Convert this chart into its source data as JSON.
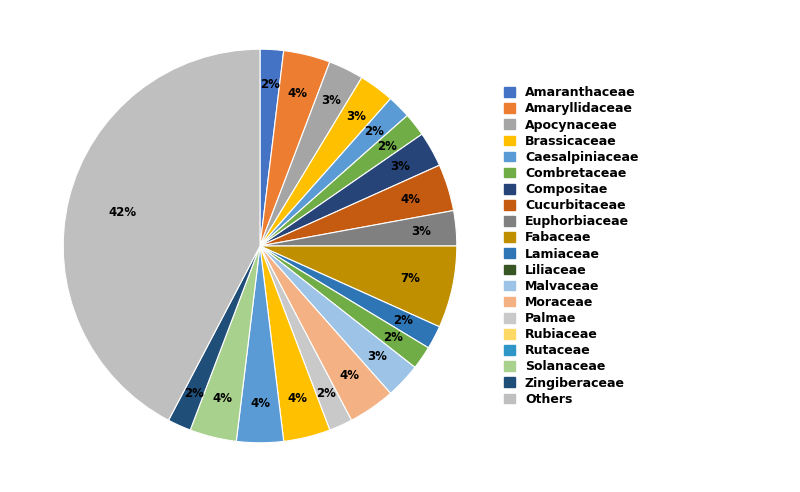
{
  "labels": [
    "Amaranthaceae",
    "Amaryllidaceae",
    "Apocynaceae",
    "Brassicaceae",
    "Caesalpiniaceae",
    "Combretaceae",
    "Compositae",
    "Cucurbitaceae",
    "Euphorbiaceae",
    "Fabaceae",
    "Lamiaceae",
    "Liliaceae",
    "Malvaceae",
    "Moraceae",
    "Palmae",
    "Rubiaceae",
    "Rutaceae",
    "Solanaceae",
    "Zingiberaceae",
    "Others"
  ],
  "values": [
    2,
    4,
    3,
    3,
    2,
    2,
    3,
    4,
    3,
    7,
    2,
    2,
    3,
    4,
    2,
    4,
    4,
    4,
    2,
    44
  ],
  "colors": [
    "#4472C4",
    "#ED7D31",
    "#A5A5A5",
    "#FFC000",
    "#5B9BD5",
    "#70AD47",
    "#264478",
    "#C55A11",
    "#808080",
    "#BF8F00",
    "#2E75B6",
    "#70AD47",
    "#9DC3E6",
    "#F4B183",
    "#C9C9C9",
    "#FFC000",
    "#5B9BD5",
    "#A9D18E",
    "#1F4E79",
    "#BFBFBF"
  ],
  "startangle": 90,
  "figsize": [
    8.0,
    4.92
  ],
  "dpi": 100,
  "legend_fontsize": 9,
  "pct_fontsize": 8.5,
  "background": "#ffffff"
}
